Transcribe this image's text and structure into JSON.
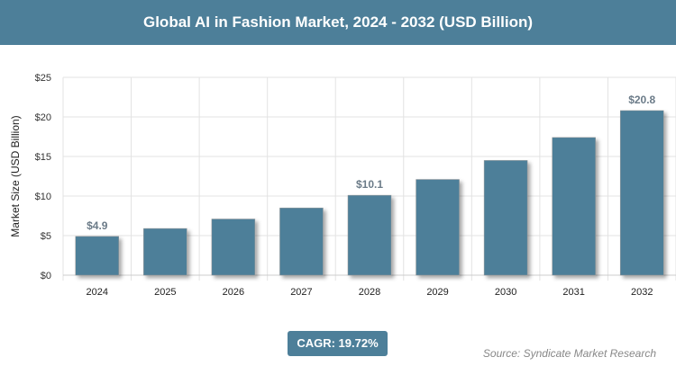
{
  "chart_data": {
    "type": "bar",
    "title": "Global AI in Fashion Market, 2024 - 2032 (USD Billion)",
    "ylabel": "Market Size (USD Billion)",
    "xlabel": "",
    "categories": [
      "2024",
      "2025",
      "2026",
      "2027",
      "2028",
      "2029",
      "2030",
      "2031",
      "2032"
    ],
    "values": [
      4.9,
      5.9,
      7.1,
      8.5,
      10.1,
      12.1,
      14.5,
      17.4,
      20.8
    ],
    "data_labels": {
      "0": "$4.9",
      "4": "$10.1",
      "8": "$20.8"
    },
    "ylim": [
      0,
      25
    ],
    "yticks": [
      "$0",
      "$5",
      "$10",
      "$15",
      "$20",
      "$25"
    ],
    "grid": true,
    "bar_color": "#4d7f99"
  },
  "cagr": "CAGR: 19.72%",
  "source": "Source: Syndicate Market Research"
}
